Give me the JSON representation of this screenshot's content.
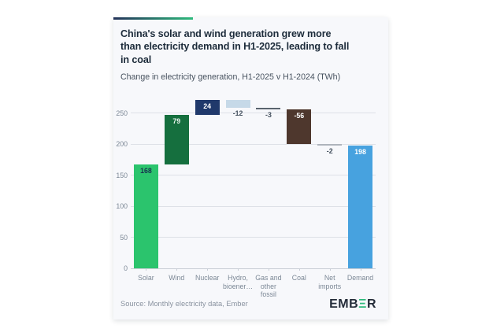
{
  "card": {
    "title": "China's solar and wind generation grew more\nthan electricity demand in H1-2025, leading to fall\nin coal",
    "subtitle": "Change in electricity generation, H1-2025 v H1-2024 (TWh)",
    "source": "Source: Monthly electricity data, Ember",
    "logo": {
      "prefix": "EMB",
      "xi": "Ξ",
      "suffix": "R"
    },
    "accent_colors": [
      "#24335a",
      "#2eba7c"
    ]
  },
  "chart_data": {
    "type": "bar",
    "subtype": "waterfall",
    "title": "China's solar and wind generation grew more than electricity demand in H1-2025, leading to fall in coal",
    "subtitle": "Change in electricity generation, H1-2025 v H1-2024 (TWh)",
    "xlabel": "",
    "ylabel": "TWh",
    "grid": true,
    "legend": false,
    "ylim": [
      0,
      274
    ],
    "y_ticks": [
      0,
      50,
      100,
      150,
      200,
      250
    ],
    "categories": [
      "Solar",
      "Wind",
      "Nuclear",
      "Hydro,\nbioener…",
      "Gas and\nother\nfossil",
      "Coal",
      "Net\nimports",
      "Demand"
    ],
    "items": [
      {
        "key": "solar",
        "category": "Solar",
        "value": 168,
        "display": "168",
        "color": "#2bc46d",
        "label_position": "inside",
        "label_color": "#17344f",
        "is_total": false
      },
      {
        "key": "wind",
        "category": "Wind",
        "value": 79,
        "display": "79",
        "color": "#156f3e",
        "label_position": "inside",
        "label_color": "#e9f4ee",
        "is_total": false
      },
      {
        "key": "nuclear",
        "category": "Nuclear",
        "value": 24,
        "display": "24",
        "color": "#20396b",
        "label_position": "inside",
        "label_color": "#ffffff",
        "is_total": false
      },
      {
        "key": "hydro",
        "category": "Hydro,\nbioener…",
        "value": -12,
        "display": "-12",
        "color": "#c6d9e8",
        "label_position": "below",
        "label_color": "#44505e",
        "is_total": false
      },
      {
        "key": "gas",
        "category": "Gas and\nother\nfossil",
        "value": -3,
        "display": "-3",
        "color": "#5a646e",
        "label_position": "below",
        "label_color": "#44505e",
        "is_total": false
      },
      {
        "key": "coal",
        "category": "Coal",
        "value": -56,
        "display": "-56",
        "color": "#4e372d",
        "label_position": "inside",
        "label_color": "#ffffff",
        "is_total": false
      },
      {
        "key": "net-imports",
        "category": "Net\nimports",
        "value": -2,
        "display": "-2",
        "color": "#aeb4bc",
        "label_position": "below",
        "label_color": "#44505e",
        "is_total": false
      },
      {
        "key": "demand",
        "category": "Demand",
        "value": 198,
        "display": "198",
        "color": "#47a2df",
        "label_position": "inside",
        "label_color": "#ffffff",
        "is_total": true
      }
    ]
  }
}
